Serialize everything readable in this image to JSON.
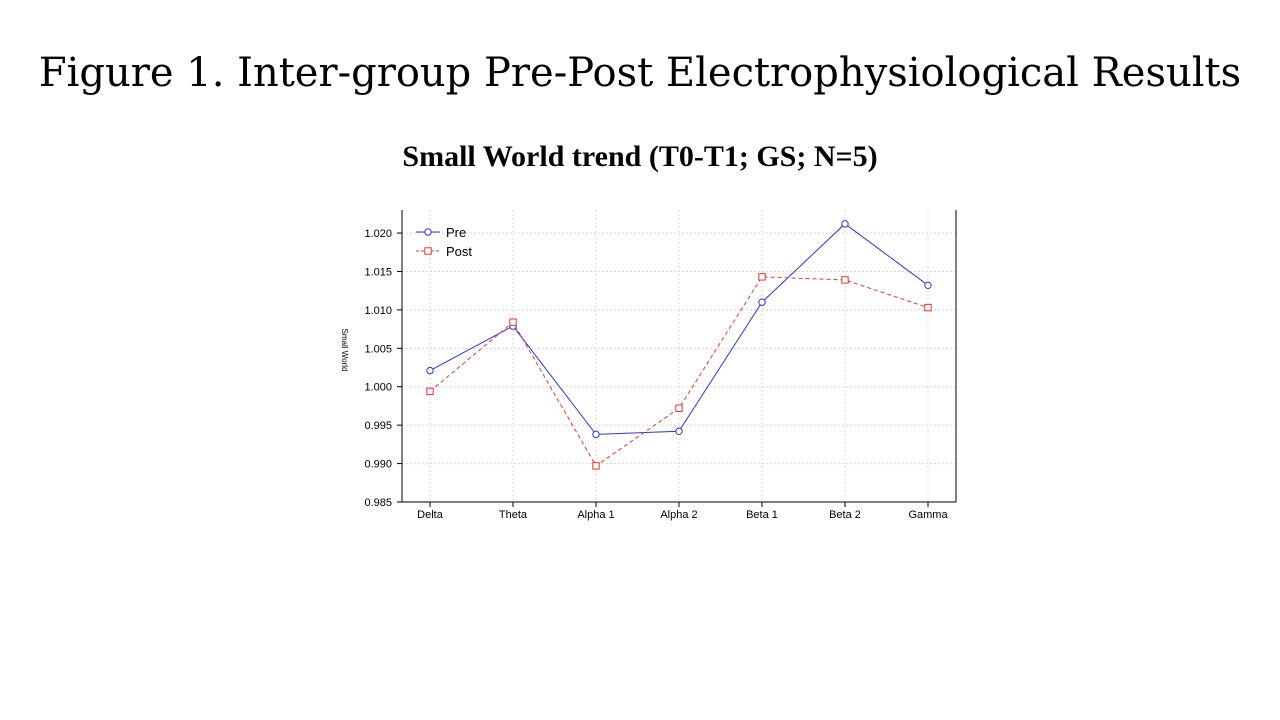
{
  "slide": {
    "title": "Figure 1. Inter-group Pre-Post Electrophysiological Results"
  },
  "chart_data": {
    "type": "line",
    "title": "Small World trend (T0-T1; GS; N=5)",
    "xlabel": "",
    "ylabel": "Small World",
    "categories": [
      "Delta",
      "Theta",
      "Alpha 1",
      "Alpha 2",
      "Beta 1",
      "Beta 2",
      "Gamma"
    ],
    "ylim": [
      0.985,
      1.023
    ],
    "yticks": [
      0.985,
      0.99,
      0.995,
      1.0,
      1.005,
      1.01,
      1.015,
      1.02
    ],
    "ytick_labels": [
      "0.985",
      "0.990",
      "0.995",
      "1.000",
      "1.005",
      "1.010",
      "1.015",
      "1.020"
    ],
    "grid": true,
    "legend_position": "top-left",
    "series": [
      {
        "name": "Pre",
        "values": [
          1.0021,
          1.0079,
          0.9938,
          0.9942,
          1.011,
          1.0212,
          1.0132
        ],
        "color": "#3333dd",
        "line_style": "solid",
        "marker": "circle"
      },
      {
        "name": "Post",
        "values": [
          0.9994,
          1.0084,
          0.9897,
          0.9972,
          1.0143,
          1.0139,
          1.0103
        ],
        "color": "#ee3333",
        "line_style": "dashed",
        "marker": "square"
      }
    ]
  }
}
